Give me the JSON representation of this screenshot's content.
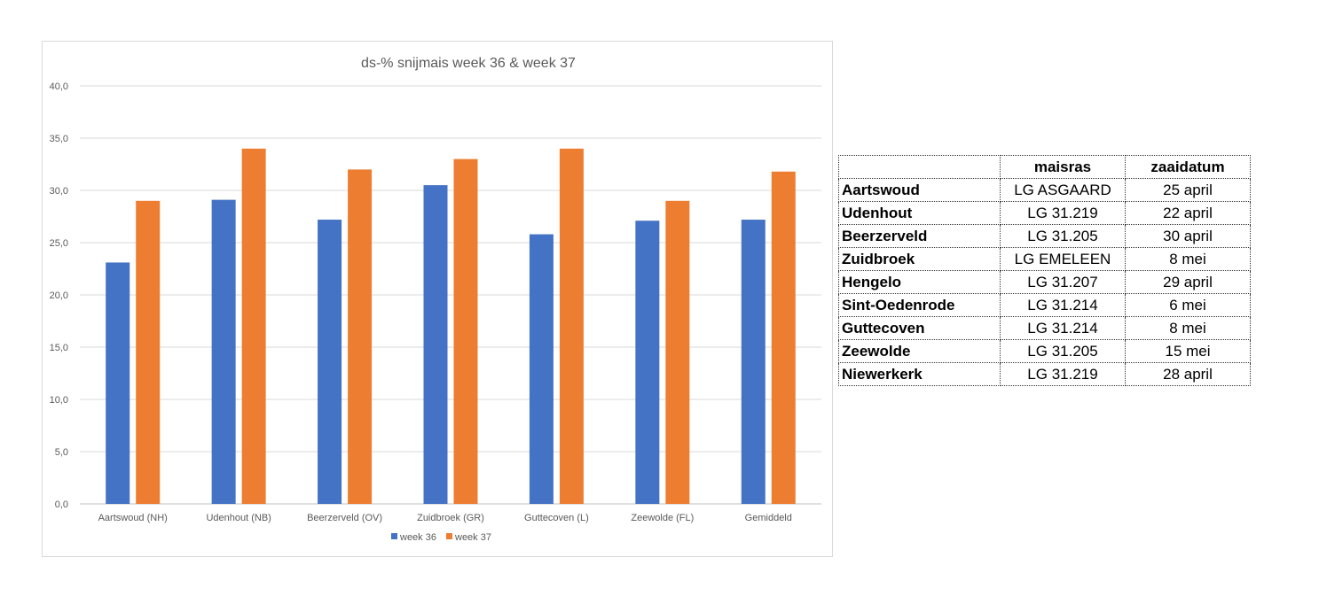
{
  "chart_data": {
    "type": "bar",
    "title": "ds-% snijmais week 36 & week 37",
    "categories": [
      "Aartswoud (NH)",
      "Udenhout (NB)",
      "Beerzerveld (OV)",
      "Zuidbroek (GR)",
      "Guttecoven (L)",
      "Zeewolde (FL)",
      "Gemiddeld"
    ],
    "series": [
      {
        "name": "week 36",
        "color": "#4472c4",
        "values": [
          23.1,
          29.1,
          27.2,
          30.5,
          25.8,
          27.1,
          27.2
        ]
      },
      {
        "name": "week 37",
        "color": "#ed7d31",
        "values": [
          29.0,
          34.0,
          32.0,
          33.0,
          34.0,
          29.0,
          31.8
        ]
      }
    ],
    "ylim": [
      0,
      40
    ],
    "yticks": [
      "0,0",
      "5,0",
      "10,0",
      "15,0",
      "20,0",
      "25,0",
      "30,0",
      "35,0",
      "40,0"
    ],
    "xlabel": "",
    "ylabel": "",
    "grid": true,
    "legend_position": "bottom"
  },
  "table": {
    "headers": [
      "",
      "maisras",
      "zaaidatum"
    ],
    "rows": [
      {
        "locatie": "Aartswoud",
        "maisras": "LG ASGAARD",
        "zaaidatum": "25 april"
      },
      {
        "locatie": "Udenhout",
        "maisras": "LG 31.219",
        "zaaidatum": "22 april"
      },
      {
        "locatie": "Beerzerveld",
        "maisras": "LG 31.205",
        "zaaidatum": "30 april"
      },
      {
        "locatie": "Zuidbroek",
        "maisras": "LG EMELEEN",
        "zaaidatum": "8 mei"
      },
      {
        "locatie": "Hengelo",
        "maisras": "LG 31.207",
        "zaaidatum": "29 april"
      },
      {
        "locatie": "Sint-Oedenrode",
        "maisras": "LG 31.214",
        "zaaidatum": "6 mei"
      },
      {
        "locatie": "Guttecoven",
        "maisras": "LG 31.214",
        "zaaidatum": "8 mei"
      },
      {
        "locatie": "Zeewolde",
        "maisras": "LG 31.205",
        "zaaidatum": "15 mei"
      },
      {
        "locatie": "Niewerkerk",
        "maisras": "LG 31.219",
        "zaaidatum": "28 april"
      }
    ]
  }
}
